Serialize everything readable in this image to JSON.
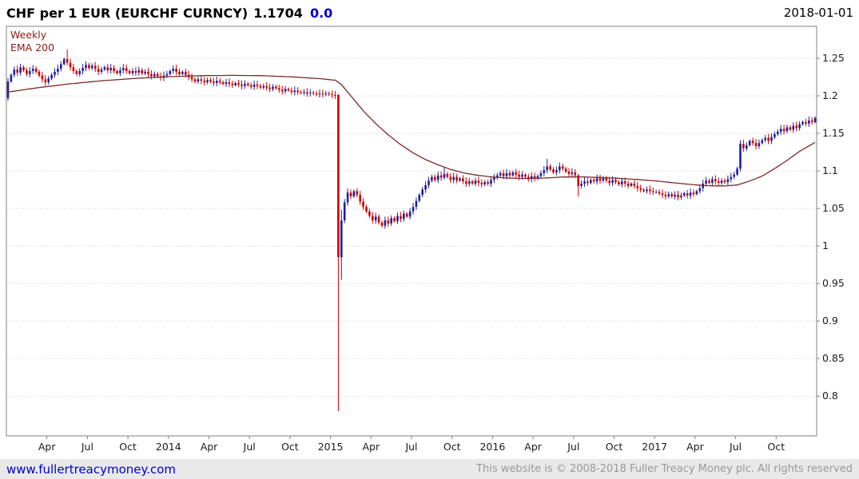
{
  "header": {
    "title": "CHF per 1 EUR (EURCHF CURNCY)",
    "price": "1.1704",
    "change": "0.0",
    "date": "2018-01-01"
  },
  "chart_data": {
    "type": "candlestick",
    "interval_label": "Weekly",
    "overlay_label": "EMA 200",
    "ylim": [
      0.747,
      1.2925
    ],
    "yticks": [
      0.8,
      0.85,
      0.9,
      0.95,
      1,
      1.05,
      1.1,
      1.15,
      1.2,
      1.25
    ],
    "ytick_labels": [
      "0.8",
      "0.85",
      "0.9",
      "0.95",
      "1",
      "1.05",
      "1.1",
      "1.15",
      "1.2",
      "1.25"
    ],
    "x_labels": [
      {
        "label": "Apr",
        "week": 13
      },
      {
        "label": "Jul",
        "week": 26
      },
      {
        "label": "Oct",
        "week": 39
      },
      {
        "label": "2014",
        "week": 52
      },
      {
        "label": "Apr",
        "week": 65
      },
      {
        "label": "Jul",
        "week": 78
      },
      {
        "label": "Oct",
        "week": 91
      },
      {
        "label": "2015",
        "week": 104
      },
      {
        "label": "Apr",
        "week": 117
      },
      {
        "label": "Jul",
        "week": 130
      },
      {
        "label": "Oct",
        "week": 143
      },
      {
        "label": "2016",
        "week": 156
      },
      {
        "label": "Apr",
        "week": 169
      },
      {
        "label": "Jul",
        "week": 182
      },
      {
        "label": "Oct",
        "week": 195
      },
      {
        "label": "2017",
        "week": 208
      },
      {
        "label": "Apr",
        "week": 221
      },
      {
        "label": "Jul",
        "week": 234
      },
      {
        "label": "Oct",
        "week": 247
      }
    ],
    "closes": [
      1.219,
      1.228,
      1.235,
      1.231,
      1.238,
      1.234,
      1.229,
      1.233,
      1.236,
      1.232,
      1.227,
      1.222,
      1.218,
      1.223,
      1.228,
      1.232,
      1.236,
      1.242,
      1.249,
      1.244,
      1.238,
      1.233,
      1.229,
      1.233,
      1.237,
      1.241,
      1.237,
      1.24,
      1.236,
      1.232,
      1.235,
      1.238,
      1.234,
      1.237,
      1.233,
      1.23,
      1.234,
      1.237,
      1.233,
      1.23,
      1.233,
      1.231,
      1.234,
      1.23,
      1.232,
      1.229,
      1.226,
      1.229,
      1.226,
      1.224,
      1.227,
      1.229,
      1.233,
      1.236,
      1.232,
      1.229,
      1.232,
      1.228,
      1.225,
      1.222,
      1.219,
      1.222,
      1.22,
      1.218,
      1.221,
      1.219,
      1.217,
      1.22,
      1.218,
      1.216,
      1.218,
      1.216,
      1.214,
      1.217,
      1.215,
      1.213,
      1.216,
      1.214,
      1.212,
      1.215,
      1.213,
      1.211,
      1.213,
      1.211,
      1.209,
      1.212,
      1.21,
      1.208,
      1.206,
      1.209,
      1.207,
      1.205,
      1.207,
      1.205,
      1.204,
      1.205,
      1.203,
      1.204,
      1.203,
      1.202,
      1.203,
      1.202,
      1.203,
      1.202,
      1.201,
      1.2005,
      0.985,
      1.034,
      1.058,
      1.071,
      1.066,
      1.073,
      1.068,
      1.059,
      1.052,
      1.046,
      1.04,
      1.034,
      1.039,
      1.031,
      1.027,
      1.034,
      1.03,
      1.037,
      1.033,
      1.04,
      1.036,
      1.043,
      1.039,
      1.046,
      1.052,
      1.06,
      1.068,
      1.075,
      1.081,
      1.087,
      1.092,
      1.088,
      1.094,
      1.091,
      1.096,
      1.092,
      1.088,
      1.092,
      1.087,
      1.09,
      1.086,
      1.083,
      1.086,
      1.083,
      1.087,
      1.084,
      1.082,
      1.085,
      1.083,
      1.088,
      1.091,
      1.094,
      1.097,
      1.093,
      1.097,
      1.094,
      1.098,
      1.095,
      1.092,
      1.095,
      1.092,
      1.089,
      1.093,
      1.09,
      1.093,
      1.097,
      1.101,
      1.106,
      1.102,
      1.098,
      1.101,
      1.106,
      1.103,
      1.099,
      1.096,
      1.098,
      1.094,
      1.08,
      1.083,
      1.086,
      1.084,
      1.088,
      1.086,
      1.09,
      1.087,
      1.09,
      1.087,
      1.084,
      1.088,
      1.085,
      1.082,
      1.086,
      1.083,
      1.08,
      1.083,
      1.08,
      1.077,
      1.075,
      1.073,
      1.075,
      1.073,
      1.072,
      1.072,
      1.07,
      1.068,
      1.066,
      1.069,
      1.066,
      1.068,
      1.065,
      1.067,
      1.07,
      1.067,
      1.071,
      1.069,
      1.073,
      1.077,
      1.083,
      1.087,
      1.084,
      1.089,
      1.086,
      1.084,
      1.087,
      1.085,
      1.089,
      1.092,
      1.095,
      1.103,
      1.136,
      1.13,
      1.134,
      1.14,
      1.137,
      1.133,
      1.137,
      1.141,
      1.144,
      1.14,
      1.145,
      1.149,
      1.152,
      1.156,
      1.153,
      1.158,
      1.155,
      1.16,
      1.157,
      1.162,
      1.165,
      1.163,
      1.167,
      1.165,
      1.1704
    ],
    "special": {
      "0": {
        "o": 1.197,
        "l": 1.1935
      },
      "19": {
        "h": 1.262
      },
      "106": {
        "o": 1.201,
        "h": 1.2025,
        "l": 0.78,
        "c": 0.985
      },
      "107": {
        "h": 1.048,
        "l": 0.955
      },
      "140": {
        "h": 1.105
      },
      "173": {
        "h": 1.116
      },
      "183": {
        "l": 1.066
      }
    },
    "ema_points": [
      [
        0,
        1.205
      ],
      [
        10,
        1.211
      ],
      [
        20,
        1.216
      ],
      [
        30,
        1.22
      ],
      [
        42,
        1.2235
      ],
      [
        52,
        1.2255
      ],
      [
        62,
        1.2268
      ],
      [
        72,
        1.2272
      ],
      [
        82,
        1.2268
      ],
      [
        92,
        1.225
      ],
      [
        100,
        1.2228
      ],
      [
        105,
        1.2208
      ],
      [
        107,
        1.215
      ],
      [
        110,
        1.2
      ],
      [
        114,
        1.18
      ],
      [
        118,
        1.163
      ],
      [
        122,
        1.148
      ],
      [
        126,
        1.135
      ],
      [
        130,
        1.124
      ],
      [
        134,
        1.115
      ],
      [
        138,
        1.108
      ],
      [
        142,
        1.102
      ],
      [
        146,
        1.0975
      ],
      [
        150,
        1.0945
      ],
      [
        155,
        1.092
      ],
      [
        160,
        1.0905
      ],
      [
        166,
        1.0898
      ],
      [
        172,
        1.0905
      ],
      [
        178,
        1.0918
      ],
      [
        184,
        1.092
      ],
      [
        190,
        1.0912
      ],
      [
        196,
        1.09
      ],
      [
        202,
        1.0885
      ],
      [
        208,
        1.0865
      ],
      [
        214,
        1.084
      ],
      [
        220,
        1.0815
      ],
      [
        226,
        1.08
      ],
      [
        230,
        1.08
      ],
      [
        234,
        1.0812
      ],
      [
        238,
        1.0865
      ],
      [
        242,
        1.093
      ],
      [
        246,
        1.103
      ],
      [
        250,
        1.114
      ],
      [
        254,
        1.126
      ],
      [
        259,
        1.138
      ]
    ],
    "colors": {
      "up": "#20209a",
      "down": "#cc0000",
      "ema": "#7d2828",
      "grid": "#cfcfcf",
      "axis": "#808080"
    }
  },
  "footer": {
    "link": "www.fullertreacymoney.com",
    "copyright": "This website is © 2008-2018 Fuller Treacy Money plc. All rights reserved"
  }
}
